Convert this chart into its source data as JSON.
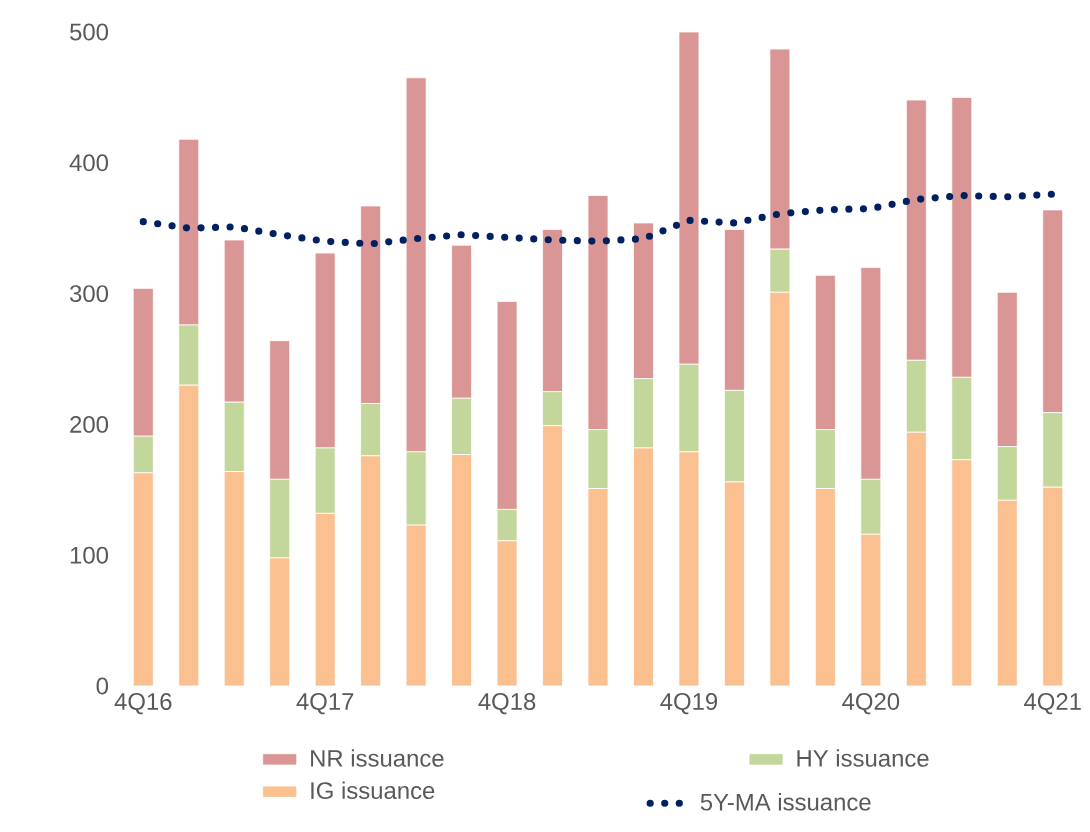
{
  "chart_data": {
    "type": "bar",
    "stacked": true,
    "categories": [
      "4Q16",
      null,
      null,
      null,
      "4Q17",
      null,
      null,
      null,
      "4Q18",
      null,
      null,
      null,
      "4Q19",
      null,
      null,
      null,
      "4Q20",
      null,
      null,
      null,
      "4Q21"
    ],
    "series": [
      {
        "name": "IG issuance",
        "color": "#fac090",
        "values": [
          163,
          230,
          164,
          98,
          132,
          176,
          123,
          177,
          111,
          199,
          151,
          182,
          179,
          156,
          301,
          151,
          116,
          194,
          173,
          142,
          152
        ]
      },
      {
        "name": "HY issuance",
        "color": "#c3d69b",
        "values": [
          28,
          46,
          53,
          60,
          50,
          40,
          56,
          43,
          24,
          26,
          45,
          53,
          67,
          70,
          33,
          45,
          42,
          55,
          63,
          41,
          57
        ]
      },
      {
        "name": "NR issuance",
        "color": "#d99694",
        "values": [
          113,
          142,
          124,
          106,
          149,
          151,
          286,
          117,
          159,
          124,
          179,
          119,
          254,
          123,
          153,
          118,
          162,
          199,
          214,
          118,
          155
        ]
      },
      {
        "name": "5Y-MA issuance",
        "type": "line",
        "line_style": "dotted",
        "color": "#002060",
        "values": [
          355,
          350,
          351,
          345,
          340,
          338,
          342,
          345,
          343,
          341,
          340,
          342,
          356,
          354,
          361,
          364,
          365,
          372,
          375,
          374,
          376
        ]
      }
    ],
    "ylim": [
      0,
      500
    ],
    "yticks": [
      0,
      100,
      200,
      300,
      400,
      500
    ],
    "grid": false,
    "legend": "bottom"
  }
}
